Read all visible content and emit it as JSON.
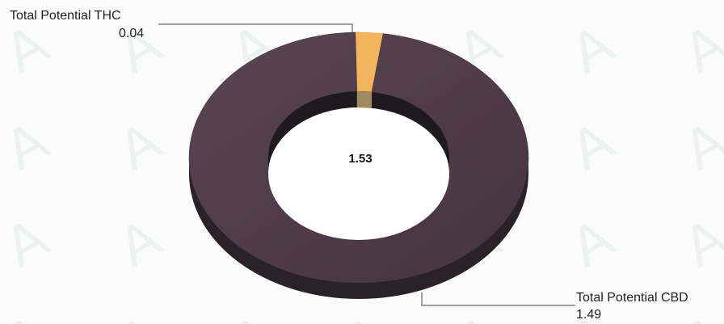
{
  "chart_data": {
    "type": "pie",
    "variant": "donut-3d",
    "categories": [
      "Total Potential THC",
      "Total Potential CBD"
    ],
    "values": [
      0.04,
      1.49
    ],
    "total": "1.53",
    "labels": [
      {
        "name": "Total Potential THC",
        "value": "0.04"
      },
      {
        "name": "Total Potential CBD",
        "value": "1.49"
      }
    ],
    "colors": {
      "thc": "#f2b45c",
      "cbd": "#4d3a45",
      "cbd_side": "#2a2226"
    },
    "legend": "none"
  }
}
